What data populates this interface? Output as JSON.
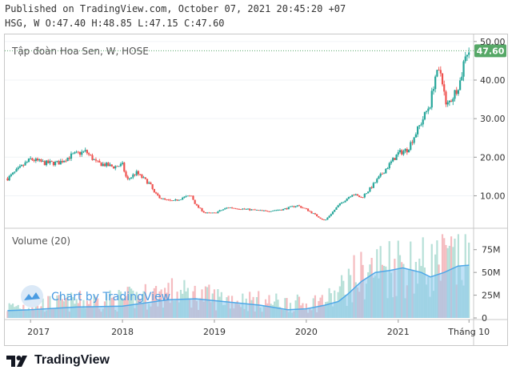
{
  "header": {
    "published_line": "Published on TradingView.com, October 07, 2021 20:45:20 +07",
    "ohlc_line": "HSG, W O:47.40 H:48.85 L:47.15 C:47.60"
  },
  "footer": {
    "brand": "TradingView"
  },
  "colors": {
    "up": "#26a69a",
    "down": "#ef5350",
    "vol_up": "#b7e0d8",
    "vol_down": "#f5bcc0",
    "ma_fill": "#8cc8f0",
    "ma_line": "#4fa8e8",
    "last_price_bg": "#56a867",
    "watermark": "#4b9ce2"
  },
  "chart_data": {
    "type": "candlestick",
    "symbol_label": "Tập đoàn Hoa Sen, W, HOSE",
    "last_price_label": "47.60",
    "price_axis": {
      "min": 2,
      "max": 51,
      "ticks": [
        "50.00",
        "40.00",
        "30.00",
        "20.00",
        "10.00"
      ],
      "tick_values": [
        50,
        40,
        30,
        20,
        10
      ]
    },
    "time_axis": {
      "labels": [
        "2017",
        "2018",
        "2019",
        "2020",
        "2021",
        "Tháng 10"
      ]
    },
    "price_path": [
      [
        2016.75,
        14.5
      ],
      [
        2016.9,
        17.5
      ],
      [
        2017.0,
        19.5
      ],
      [
        2017.15,
        18.5
      ],
      [
        2017.3,
        18.5
      ],
      [
        2017.45,
        20.5
      ],
      [
        2017.6,
        21.5
      ],
      [
        2017.72,
        18.5
      ],
      [
        2017.82,
        18.0
      ],
      [
        2017.9,
        17.5
      ],
      [
        2018.0,
        18.0
      ],
      [
        2018.05,
        14.0
      ],
      [
        2018.15,
        16.0
      ],
      [
        2018.3,
        13.0
      ],
      [
        2018.35,
        10.5
      ],
      [
        2018.45,
        9.0
      ],
      [
        2018.55,
        8.5
      ],
      [
        2018.65,
        9.5
      ],
      [
        2018.75,
        10.0
      ],
      [
        2018.8,
        7.5
      ],
      [
        2018.9,
        5.5
      ],
      [
        2019.0,
        5.5
      ],
      [
        2019.15,
        7.0
      ],
      [
        2019.35,
        6.5
      ],
      [
        2019.55,
        6.0
      ],
      [
        2019.75,
        6.5
      ],
      [
        2019.9,
        7.5
      ],
      [
        2020.0,
        6.5
      ],
      [
        2020.1,
        5.0
      ],
      [
        2020.2,
        3.5
      ],
      [
        2020.35,
        7.5
      ],
      [
        2020.5,
        10.5
      ],
      [
        2020.6,
        9.5
      ],
      [
        2020.7,
        12.0
      ],
      [
        2020.85,
        16.5
      ],
      [
        2021.0,
        21.0
      ],
      [
        2021.1,
        22.0
      ],
      [
        2021.25,
        29.0
      ],
      [
        2021.35,
        34.0
      ],
      [
        2021.4,
        41.0
      ],
      [
        2021.47,
        42.0
      ],
      [
        2021.52,
        33.0
      ],
      [
        2021.6,
        36.0
      ],
      [
        2021.68,
        40.0
      ],
      [
        2021.73,
        47.0
      ],
      [
        2021.77,
        47.6
      ]
    ],
    "volume": {
      "label": "Volume (20)",
      "axis": {
        "max": 95,
        "ticks": [
          "75M",
          "50M",
          "25M",
          "0"
        ],
        "tick_values": [
          75,
          50,
          25,
          0
        ]
      },
      "ma_path": [
        [
          2016.75,
          8
        ],
        [
          2017.0,
          9
        ],
        [
          2017.5,
          12
        ],
        [
          2018.0,
          13
        ],
        [
          2018.5,
          20
        ],
        [
          2018.8,
          21
        ],
        [
          2019.0,
          19
        ],
        [
          2019.5,
          14
        ],
        [
          2019.8,
          9
        ],
        [
          2020.0,
          10
        ],
        [
          2020.2,
          14
        ],
        [
          2020.35,
          18
        ],
        [
          2020.45,
          26
        ],
        [
          2020.6,
          40
        ],
        [
          2020.75,
          50
        ],
        [
          2020.9,
          52
        ],
        [
          2021.05,
          55
        ],
        [
          2021.25,
          50
        ],
        [
          2021.35,
          45
        ],
        [
          2021.5,
          50
        ],
        [
          2021.65,
          57
        ],
        [
          2021.77,
          58
        ]
      ],
      "level_path": [
        [
          2016.75,
          12
        ],
        [
          2017.5,
          18
        ],
        [
          2018.0,
          20
        ],
        [
          2018.5,
          28
        ],
        [
          2019.0,
          22
        ],
        [
          2019.5,
          18
        ],
        [
          2020.0,
          15
        ],
        [
          2020.3,
          22
        ],
        [
          2020.5,
          42
        ],
        [
          2020.8,
          55
        ],
        [
          2021.0,
          60
        ],
        [
          2021.3,
          55
        ],
        [
          2021.5,
          60
        ],
        [
          2021.77,
          65
        ]
      ]
    },
    "watermark_text": "Chart by TradingView"
  }
}
